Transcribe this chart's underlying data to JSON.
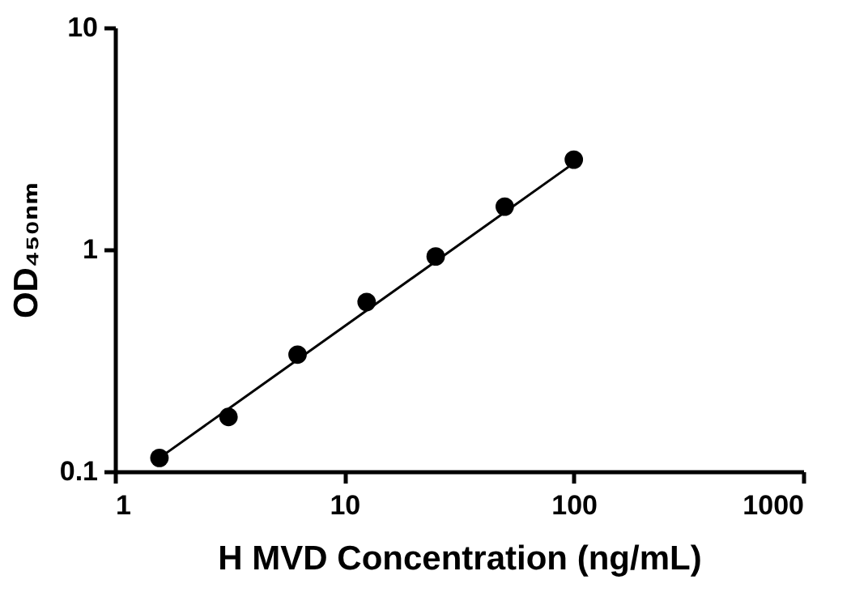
{
  "chart_data": {
    "type": "scatter",
    "xlabel": "H MVD Concentration (ng/mL)",
    "ylabel": "OD₄₅₀ₙₘ",
    "log": "xy",
    "xlim": [
      1,
      1000
    ],
    "xticks": [
      1,
      10,
      100,
      1000
    ],
    "ylim": [
      0.1,
      10
    ],
    "yticks": [
      0.1,
      1,
      10
    ],
    "grid": false,
    "marker": "circle",
    "series": [
      {
        "type": "scatter",
        "color": "#000000",
        "x": [
          1.5625,
          3.125,
          6.25,
          12.5,
          25,
          50,
          100
        ],
        "values": [
          0.115,
          0.176,
          0.336,
          0.58,
          0.93,
          1.56,
          2.54
        ]
      },
      {
        "type": "line",
        "color": "#000000",
        "marker": "none",
        "line_style": "solid",
        "x": [
          1.5625,
          100
        ],
        "values": [
          0.115,
          2.45
        ]
      }
    ]
  }
}
